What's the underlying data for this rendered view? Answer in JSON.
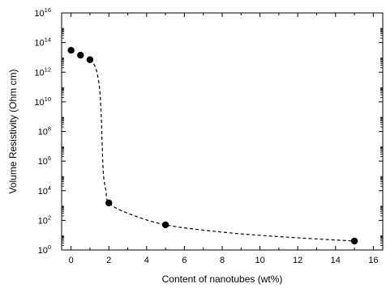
{
  "chart_data": {
    "type": "scatter",
    "title": "",
    "xlabel": "Content of nanotubes (wt%)",
    "ylabel": "Volume Resistivity (Ohm cm)",
    "xlim": [
      -0.5,
      16.5
    ],
    "ylim_log10": [
      0,
      16
    ],
    "yscale": "log",
    "grid": false,
    "legend": "none",
    "x_ticks": [
      0,
      2,
      4,
      6,
      8,
      10,
      12,
      14,
      16
    ],
    "x_tick_labels": [
      "0",
      "2",
      "4",
      "6",
      "8",
      "10",
      "12",
      "14",
      "16"
    ],
    "y_tick_exponents": [
      0,
      2,
      4,
      6,
      8,
      10,
      12,
      14,
      16
    ],
    "y_tick_base": "10",
    "series": [
      {
        "marker": "filled-circle",
        "points": [
          {
            "x": 0,
            "y": 30000000000000.0
          },
          {
            "x": 0.5,
            "y": 14000000000000.0
          },
          {
            "x": 1,
            "y": 7000000000000.0
          },
          {
            "x": 2,
            "y": 1500.0
          },
          {
            "x": 5,
            "y": 50.0
          },
          {
            "x": 15,
            "y": 4.0
          }
        ]
      }
    ],
    "fit_curve": {
      "style": "dashed",
      "points": [
        {
          "x": 1,
          "y": 7000000000000.0
        },
        {
          "x": 1.3,
          "y": 2000000000000.0
        },
        {
          "x": 1.5,
          "y": 100000000000.0
        },
        {
          "x": 1.6,
          "y": 1000000000.0
        },
        {
          "x": 1.65,
          "y": 10000000.0
        },
        {
          "x": 1.72,
          "y": 100000.0
        },
        {
          "x": 1.85,
          "y": 10000.0
        },
        {
          "x": 2,
          "y": 1500.0
        },
        {
          "x": 3,
          "y": 300.0
        },
        {
          "x": 5,
          "y": 50.0
        },
        {
          "x": 8,
          "y": 16.0
        },
        {
          "x": 11,
          "y": 8.0
        },
        {
          "x": 15,
          "y": 4.0
        }
      ]
    },
    "colors": {
      "axis": "#000000",
      "marker": "#000000",
      "curve": "#000000",
      "background": "#ffffff"
    }
  }
}
